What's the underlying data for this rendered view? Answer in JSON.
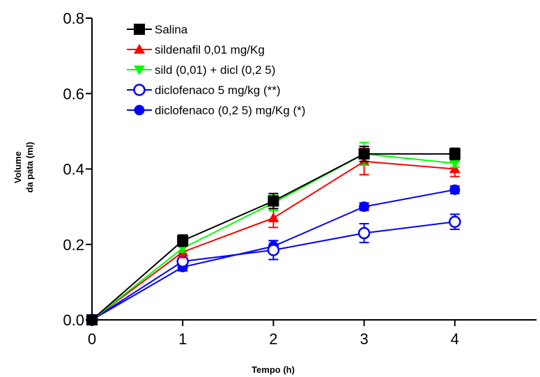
{
  "chart_data": {
    "type": "line",
    "title": "",
    "xlabel": "Tempo (h)",
    "ylabel_lines": [
      "Volume",
      "da pata (ml)"
    ],
    "xlim": [
      0,
      5
    ],
    "ylim": [
      0,
      0.8
    ],
    "x_ticks": [
      0,
      1,
      2,
      3,
      4
    ],
    "x_tick_labels": [
      "0",
      "1",
      "2",
      "3",
      "4"
    ],
    "y_ticks": [
      0,
      0.2,
      0.4,
      0.6,
      0.8
    ],
    "y_tick_labels": [
      "0.0",
      "0.2",
      "0.4",
      "0.6",
      "0.8"
    ],
    "grid": false,
    "legend_position": "top-left",
    "x": [
      0,
      1,
      2,
      3,
      4
    ],
    "series": [
      {
        "name": "Salina",
        "color": "#000000",
        "marker": "square-filled",
        "values": [
          0.0,
          0.21,
          0.315,
          0.44,
          0.44
        ],
        "errors": [
          0,
          0.015,
          0.02,
          0.02,
          0.015
        ]
      },
      {
        "name": "sildenafil 0,01 mg/Kg",
        "color": "#ff0000",
        "marker": "triangle-up-filled",
        "values": [
          0.0,
          0.18,
          0.27,
          0.42,
          0.4
        ],
        "errors": [
          0,
          0.015,
          0.025,
          0.035,
          0.02
        ]
      },
      {
        "name": "sild (0,01) + dicl (0,2 5)",
        "color": "#00ff00",
        "marker": "triangle-down-filled",
        "values": [
          0.0,
          0.19,
          0.31,
          0.44,
          0.415
        ],
        "errors": [
          0,
          0.01,
          0.02,
          0.03,
          0.01
        ]
      },
      {
        "name": "diclofenaco 5 mg/kg (**)",
        "color": "#0000ff",
        "marker": "circle-open",
        "values": [
          0.0,
          0.155,
          0.185,
          0.23,
          0.26
        ],
        "errors": [
          0,
          0.015,
          0.025,
          0.025,
          0.02
        ]
      },
      {
        "name": "diclofenaco  (0,2 5) mg/Kg (*)",
        "color": "#0000ff",
        "marker": "circle-filled",
        "values": [
          0.0,
          0.14,
          0.195,
          0.3,
          0.345
        ],
        "errors": [
          0,
          0.01,
          0.015,
          0.01,
          0.01
        ]
      }
    ]
  }
}
